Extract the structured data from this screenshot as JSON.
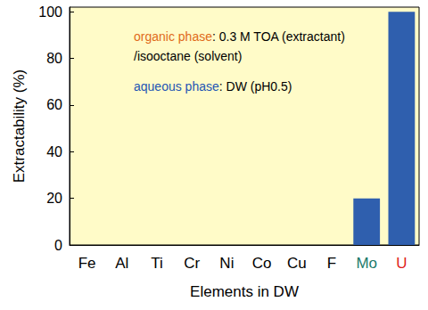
{
  "chart_data": {
    "type": "bar",
    "x_label": "Elements in DW",
    "y_label": "Extractability (%)",
    "categories": [
      "Fe",
      "Al",
      "Ti",
      "Cr",
      "Ni",
      "Co",
      "Cu",
      "F",
      "Mo",
      "U"
    ],
    "values": [
      0,
      0,
      0,
      0,
      0,
      0,
      0,
      0,
      20,
      100
    ],
    "color": "#2f5fae",
    "ylim": [
      0,
      102
    ],
    "yticks": [
      0,
      20,
      40,
      60,
      80,
      100
    ],
    "grid": false,
    "annotations": [
      [
        "organic phase",
        ": 0.3 M TOA (extractant)",
        "/isooctane (solvent)"
      ],
      [
        "aqueous phase",
        ": DW (pH0.5)"
      ]
    ]
  }
}
